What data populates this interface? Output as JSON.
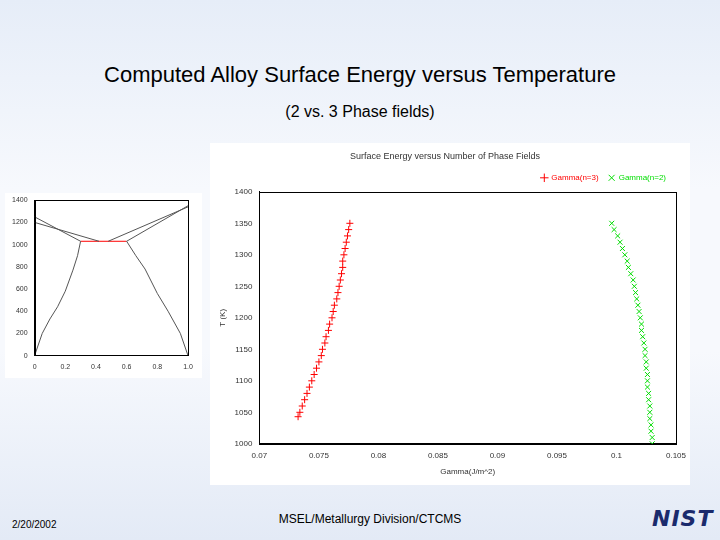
{
  "slide": {
    "title": "Computed Alloy Surface Energy versus Temperature",
    "subtitle": "(2 vs. 3 Phase fields)",
    "date": "2/20/2002",
    "footer": "MSEL/Metallurgy Division/CTCMS",
    "logo": "NIST"
  },
  "chart_data": [
    {
      "type": "scatter",
      "title": "Surface Energy versus Number of Phase Fields",
      "x_label": "Gamma(J/m^2)",
      "y_label": "T (K)",
      "xlim": [
        0.07,
        0.105
      ],
      "xticks": [
        0.07,
        0.075,
        0.08,
        0.085,
        0.09,
        0.095,
        0.1,
        0.105
      ],
      "ylim": [
        1000,
        1400
      ],
      "yticks": [
        1000,
        1050,
        1100,
        1150,
        1200,
        1250,
        1300,
        1350,
        1400
      ],
      "grid": false,
      "legend": "top-right",
      "series": [
        {
          "name": "Gamma(n=3)",
          "color": "#ff0000",
          "marker": "plus",
          "line_style": "none",
          "x": [
            0.07325,
            0.0734,
            0.0736,
            0.0738,
            0.074,
            0.0742,
            0.0744,
            0.0746,
            0.0748,
            0.075,
            0.0752,
            0.0753,
            0.0755,
            0.0756,
            0.0758,
            0.0759,
            0.0761,
            0.0762,
            0.0763,
            0.0765,
            0.0766,
            0.0767,
            0.0768,
            0.0769,
            0.077,
            0.077,
            0.0771,
            0.0772,
            0.0773,
            0.0774,
            0.0775,
            0.0776
          ],
          "values": [
            1043,
            1050,
            1060,
            1070,
            1080,
            1090,
            1100,
            1110,
            1120,
            1130,
            1140,
            1150,
            1160,
            1170,
            1180,
            1190,
            1200,
            1210,
            1220,
            1230,
            1240,
            1250,
            1260,
            1270,
            1280,
            1290,
            1300,
            1310,
            1320,
            1330,
            1340,
            1350
          ]
        },
        {
          "name": "Gamma(n=2)",
          "color": "#00dd00",
          "marker": "x",
          "line_style": "none",
          "x": [
            0.103,
            0.103,
            0.1029,
            0.1029,
            0.1028,
            0.1028,
            0.1028,
            0.1027,
            0.1027,
            0.1026,
            0.1026,
            0.1026,
            0.1025,
            0.1025,
            0.1024,
            0.1024,
            0.1023,
            0.1022,
            0.1021,
            0.1021,
            0.102,
            0.1019,
            0.1018,
            0.1017,
            0.1016,
            0.1015,
            0.1014,
            0.1012,
            0.101,
            0.1009,
            0.1007,
            0.1005,
            0.1003,
            0.1001,
            0.0998,
            0.0996
          ],
          "values": [
            1000,
            1010,
            1020,
            1030,
            1040,
            1050,
            1060,
            1070,
            1080,
            1090,
            1100,
            1110,
            1120,
            1130,
            1140,
            1150,
            1160,
            1170,
            1180,
            1190,
            1200,
            1210,
            1220,
            1230,
            1240,
            1250,
            1260,
            1270,
            1280,
            1290,
            1300,
            1310,
            1320,
            1330,
            1340,
            1350
          ]
        }
      ]
    },
    {
      "type": "line",
      "xlim": [
        0,
        1
      ],
      "xticks": [
        0,
        0.2,
        0.4,
        0.6,
        0.8,
        {
          "value": 1,
          "label": "1.0"
        }
      ],
      "ylim": [
        0,
        1400
      ],
      "yticks": [
        0,
        200,
        400,
        600,
        800,
        1000,
        1200,
        1400
      ],
      "grid": false,
      "series": [
        {
          "color": "#555555",
          "line_style": "solid",
          "x": [
            0,
            0.05,
            0.1,
            0.15,
            0.2,
            0.25,
            0.28,
            0.3
          ],
          "values": [
            0,
            200,
            330,
            440,
            580,
            770,
            900,
            1030
          ]
        },
        {
          "color": "#555555",
          "line_style": "solid",
          "x": [
            1,
            0.95,
            0.87,
            0.8,
            0.72,
            0.66,
            0.6
          ],
          "values": [
            0,
            200,
            400,
            560,
            780,
            900,
            1030
          ]
        },
        {
          "color": "#555555",
          "line_style": "solid",
          "x": [
            0,
            0.3
          ],
          "values": [
            1250,
            1030
          ]
        },
        {
          "color": "#555555",
          "line_style": "solid",
          "x": [
            0,
            0.42
          ],
          "values": [
            1200,
            1030
          ]
        },
        {
          "color": "#555555",
          "line_style": "solid",
          "x": [
            1,
            0.6
          ],
          "values": [
            1350,
            1030
          ]
        },
        {
          "color": "#555555",
          "line_style": "solid",
          "x": [
            1,
            0.48
          ],
          "values": [
            1340,
            1030
          ]
        },
        {
          "color": "#ff0000",
          "line_style": "solid",
          "x": [
            0.3,
            0.6
          ],
          "values": [
            1030,
            1030
          ]
        }
      ]
    }
  ]
}
